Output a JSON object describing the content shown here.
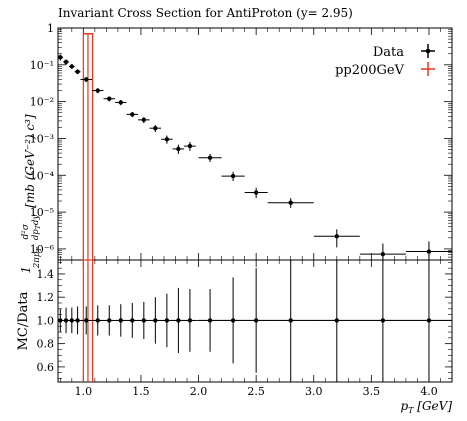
{
  "chart_data": {
    "type": "scatter",
    "title": "Invariant Cross Section for AntiProton (y= 2.95)",
    "ylabel_top": "1/(2π p_T) d²σ/(dp_T dy) [mb (GeV⁻²) c³]",
    "ylabel_bottom": "MC/Data",
    "xlabel": "p_T [GeV]",
    "xlim": [
      0.78,
      4.2
    ],
    "top_ylim": [
      5e-07,
      1.0
    ],
    "top_yscale": "log",
    "bottom_ylim": [
      0.47,
      1.52
    ],
    "x_ticks": [
      1.0,
      1.5,
      2.0,
      2.5,
      3.0,
      3.5,
      4.0
    ],
    "x_tick_labels": [
      "1.0",
      "1.5",
      "2.0",
      "2.5",
      "3.0",
      "3.5",
      "4.0"
    ],
    "top_y_ticks": [
      1e-06,
      1e-05,
      0.0001,
      0.001,
      0.01,
      0.1,
      1
    ],
    "top_y_tick_labels": [
      "10⁻⁶",
      "10⁻⁵",
      "10⁻⁴",
      "10⁻³",
      "10⁻²",
      "10⁻¹",
      "1"
    ],
    "bottom_y_ticks": [
      0.6,
      0.8,
      1.0,
      1.2,
      1.4
    ],
    "bottom_y_tick_labels": [
      "0.6",
      "0.8",
      "1.0",
      "1.2",
      "1.4"
    ],
    "legend_position": "top-right",
    "series": [
      {
        "name": "Data",
        "color": "#000000",
        "points": [
          {
            "x": 0.8,
            "xlo": 0.775,
            "xhi": 0.825,
            "y": 0.16,
            "ylo": 0.13,
            "yhi": 0.19
          },
          {
            "x": 0.85,
            "xlo": 0.825,
            "xhi": 0.875,
            "y": 0.12,
            "ylo": 0.1,
            "yhi": 0.14
          },
          {
            "x": 0.9,
            "xlo": 0.875,
            "xhi": 0.925,
            "y": 0.09,
            "ylo": 0.078,
            "yhi": 0.104
          },
          {
            "x": 0.95,
            "xlo": 0.925,
            "xhi": 0.975,
            "y": 0.065,
            "ylo": 0.056,
            "yhi": 0.075
          },
          {
            "x": 1.025,
            "xlo": 0.975,
            "xhi": 1.075,
            "y": 0.04,
            "ylo": 0.034,
            "yhi": 0.046
          },
          {
            "x": 1.125,
            "xlo": 1.075,
            "xhi": 1.175,
            "y": 0.02,
            "ylo": 0.017,
            "yhi": 0.023
          },
          {
            "x": 1.225,
            "xlo": 1.175,
            "xhi": 1.275,
            "y": 0.012,
            "ylo": 0.0102,
            "yhi": 0.0138
          },
          {
            "x": 1.325,
            "xlo": 1.275,
            "xhi": 1.375,
            "y": 0.0095,
            "ylo": 0.008,
            "yhi": 0.011
          },
          {
            "x": 1.425,
            "xlo": 1.375,
            "xhi": 1.475,
            "y": 0.0045,
            "ylo": 0.0038,
            "yhi": 0.0052
          },
          {
            "x": 1.525,
            "xlo": 1.475,
            "xhi": 1.575,
            "y": 0.0032,
            "ylo": 0.0026,
            "yhi": 0.0038
          },
          {
            "x": 1.625,
            "xlo": 1.575,
            "xhi": 1.675,
            "y": 0.0019,
            "ylo": 0.0015,
            "yhi": 0.0023
          },
          {
            "x": 1.725,
            "xlo": 1.675,
            "xhi": 1.775,
            "y": 0.00095,
            "ylo": 0.00072,
            "yhi": 0.0012
          },
          {
            "x": 1.825,
            "xlo": 1.775,
            "xhi": 1.875,
            "y": 0.00052,
            "ylo": 0.00038,
            "yhi": 0.00068
          },
          {
            "x": 1.925,
            "xlo": 1.875,
            "xhi": 1.975,
            "y": 0.00062,
            "ylo": 0.00046,
            "yhi": 0.0008
          },
          {
            "x": 2.1,
            "xlo": 2.0,
            "xhi": 2.2,
            "y": 0.0003,
            "ylo": 0.00023,
            "yhi": 0.00038
          },
          {
            "x": 2.3,
            "xlo": 2.2,
            "xhi": 2.4,
            "y": 9.5e-05,
            "ylo": 7e-05,
            "yhi": 0.000125
          },
          {
            "x": 2.5,
            "xlo": 2.4,
            "xhi": 2.6,
            "y": 3.4e-05,
            "ylo": 2.4e-05,
            "yhi": 4.6e-05
          },
          {
            "x": 2.8,
            "xlo": 2.6,
            "xhi": 3.0,
            "y": 1.8e-05,
            "ylo": 1.3e-05,
            "yhi": 2.4e-05
          },
          {
            "x": 3.2,
            "xlo": 3.0,
            "xhi": 3.4,
            "y": 2.2e-06,
            "ylo": 1.1e-06,
            "yhi": 3.4e-06
          },
          {
            "x": 3.6,
            "xlo": 3.4,
            "xhi": 3.8,
            "y": 7.2e-07,
            "ylo": 4e-07,
            "yhi": 1.4e-06
          },
          {
            "x": 4.0,
            "xlo": 3.8,
            "xhi": 4.2,
            "y": 8.5e-07,
            "ylo": 4e-07,
            "yhi": 1.6e-06
          }
        ]
      },
      {
        "name": "pp200GeV",
        "color": "#e8361c",
        "points": [
          {
            "x": 1.04,
            "xlo": 1.0,
            "xhi": 1.08,
            "y": 0.7
          }
        ]
      }
    ],
    "ratio": {
      "points": [
        {
          "x": 0.8,
          "xlo": 0.775,
          "xhi": 0.825,
          "y": 1.0,
          "ylo": 0.9,
          "yhi": 1.1
        },
        {
          "x": 0.85,
          "xlo": 0.825,
          "xhi": 0.875,
          "y": 1.0,
          "ylo": 0.89,
          "yhi": 1.11
        },
        {
          "x": 0.9,
          "xlo": 0.875,
          "xhi": 0.925,
          "y": 1.0,
          "ylo": 0.89,
          "yhi": 1.11
        },
        {
          "x": 0.95,
          "xlo": 0.925,
          "xhi": 0.975,
          "y": 1.0,
          "ylo": 0.88,
          "yhi": 1.12
        },
        {
          "x": 1.025,
          "xlo": 0.975,
          "xhi": 1.075,
          "y": 1.0,
          "ylo": 0.88,
          "yhi": 1.12
        },
        {
          "x": 1.125,
          "xlo": 1.075,
          "xhi": 1.175,
          "y": 1.0,
          "ylo": 0.87,
          "yhi": 1.13
        },
        {
          "x": 1.225,
          "xlo": 1.175,
          "xhi": 1.275,
          "y": 1.0,
          "ylo": 0.87,
          "yhi": 1.13
        },
        {
          "x": 1.325,
          "xlo": 1.275,
          "xhi": 1.375,
          "y": 1.0,
          "ylo": 0.86,
          "yhi": 1.14
        },
        {
          "x": 1.425,
          "xlo": 1.375,
          "xhi": 1.475,
          "y": 1.0,
          "ylo": 0.85,
          "yhi": 1.15
        },
        {
          "x": 1.525,
          "xlo": 1.475,
          "xhi": 1.575,
          "y": 1.0,
          "ylo": 0.84,
          "yhi": 1.16
        },
        {
          "x": 1.625,
          "xlo": 1.575,
          "xhi": 1.675,
          "y": 1.0,
          "ylo": 0.8,
          "yhi": 1.2
        },
        {
          "x": 1.725,
          "xlo": 1.675,
          "xhi": 1.775,
          "y": 1.0,
          "ylo": 0.77,
          "yhi": 1.23
        },
        {
          "x": 1.825,
          "xlo": 1.775,
          "xhi": 1.875,
          "y": 1.0,
          "ylo": 0.72,
          "yhi": 1.28
        },
        {
          "x": 1.925,
          "xlo": 1.875,
          "xhi": 1.975,
          "y": 1.0,
          "ylo": 0.73,
          "yhi": 1.27
        },
        {
          "x": 2.1,
          "xlo": 2.0,
          "xhi": 2.2,
          "y": 1.0,
          "ylo": 0.73,
          "yhi": 1.27
        },
        {
          "x": 2.3,
          "xlo": 2.2,
          "xhi": 2.4,
          "y": 1.0,
          "ylo": 0.63,
          "yhi": 1.37
        },
        {
          "x": 2.5,
          "xlo": 2.4,
          "xhi": 2.6,
          "y": 1.0,
          "ylo": 0.55,
          "yhi": 1.45
        },
        {
          "x": 2.8,
          "xlo": 2.6,
          "xhi": 3.0,
          "y": 1.0,
          "ylo": 0.47,
          "yhi": 1.52
        },
        {
          "x": 3.2,
          "xlo": 3.0,
          "xhi": 3.4,
          "y": 1.0,
          "ylo": 0.47,
          "yhi": 1.52
        },
        {
          "x": 3.6,
          "xlo": 3.4,
          "xhi": 3.8,
          "y": 1.0,
          "ylo": 0.47,
          "yhi": 1.52
        },
        {
          "x": 4.0,
          "xlo": 3.8,
          "xhi": 4.2,
          "y": 1.0,
          "ylo": 0.47,
          "yhi": 1.52
        }
      ],
      "mc_point": {
        "x": 1.04,
        "xlo": 1.0,
        "xhi": 1.08
      }
    }
  }
}
